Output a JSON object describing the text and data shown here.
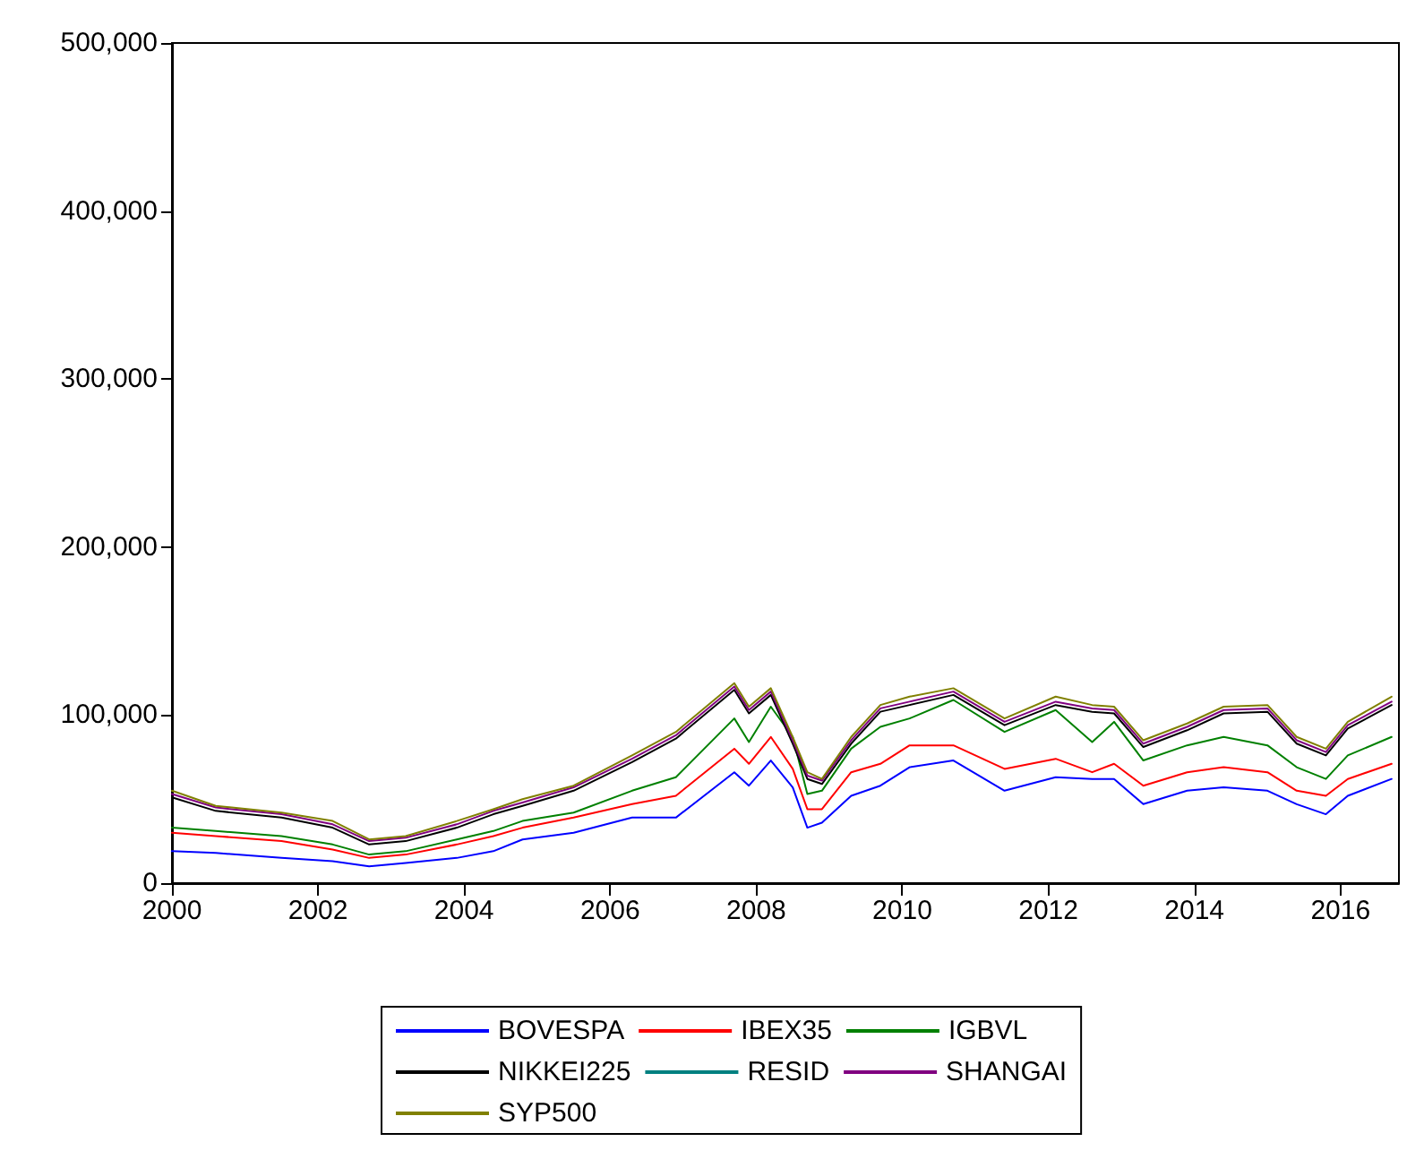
{
  "chart_data": {
    "type": "line",
    "x": [
      2000.0,
      2000.6,
      2001.5,
      2002.2,
      2002.7,
      2003.2,
      2003.9,
      2004.4,
      2004.8,
      2005.5,
      2006.3,
      2006.9,
      2007.7,
      2007.9,
      2008.2,
      2008.5,
      2008.7,
      2008.9,
      2009.3,
      2009.7,
      2010.1,
      2010.7,
      2011.4,
      2012.1,
      2012.6,
      2012.9,
      2013.3,
      2013.9,
      2014.4,
      2015.0,
      2015.4,
      2015.8,
      2016.1,
      2016.7
    ],
    "series": [
      {
        "name": "BOVESPA",
        "color": "#0000ff",
        "values": [
          19000,
          18000,
          15000,
          13000,
          10000,
          12000,
          15000,
          19000,
          26000,
          30000,
          39000,
          39000,
          66000,
          58000,
          73000,
          57000,
          33000,
          36000,
          52000,
          58000,
          69000,
          73000,
          55000,
          63000,
          62000,
          62000,
          47000,
          55000,
          57000,
          55000,
          47000,
          41000,
          52000,
          62000
        ]
      },
      {
        "name": "IBEX35",
        "color": "#ff0000",
        "values": [
          30000,
          28000,
          25000,
          20000,
          15000,
          17000,
          23000,
          28000,
          33000,
          39000,
          47000,
          52000,
          80000,
          71000,
          87000,
          68000,
          44000,
          44000,
          66000,
          71000,
          82000,
          82000,
          68000,
          74000,
          66000,
          71000,
          58000,
          66000,
          69000,
          66000,
          55000,
          52000,
          62000,
          71000
        ]
      },
      {
        "name": "IGBVL",
        "color": "#008000",
        "values": [
          33000,
          31000,
          28000,
          23000,
          17000,
          19000,
          26000,
          31000,
          37000,
          42000,
          55000,
          63000,
          98000,
          84000,
          105000,
          87000,
          53000,
          55000,
          80000,
          93000,
          98000,
          109000,
          90000,
          103000,
          84000,
          96000,
          73000,
          82000,
          87000,
          82000,
          69000,
          62000,
          76000,
          87000
        ]
      },
      {
        "name": "NIKKEI225",
        "color": "#000000",
        "values": [
          51000,
          43000,
          39000,
          33000,
          23000,
          25000,
          33000,
          41000,
          46000,
          55000,
          72000,
          86000,
          115000,
          101000,
          112000,
          83000,
          62000,
          59000,
          83000,
          102000,
          106000,
          112000,
          94000,
          106000,
          102000,
          101000,
          81000,
          91000,
          101000,
          102000,
          83000,
          76000,
          92000,
          106000
        ]
      },
      {
        "name": "RESID",
        "color": "#008080",
        "values": [
          null,
          null,
          null,
          null,
          null,
          null,
          null,
          null,
          null,
          null,
          null,
          null,
          null,
          null,
          null,
          null,
          null,
          null,
          null,
          null,
          null,
          null,
          null,
          null,
          null,
          null,
          null,
          null,
          null,
          null,
          null,
          null,
          null,
          null
        ]
      },
      {
        "name": "SHANGAI",
        "color": "#800080",
        "values": [
          53000,
          45000,
          41000,
          35000,
          25000,
          27000,
          35000,
          43000,
          48000,
          57000,
          74000,
          88000,
          117000,
          103000,
          114000,
          85000,
          64000,
          61000,
          85000,
          104000,
          108000,
          114000,
          96000,
          108000,
          104000,
          103000,
          83000,
          93000,
          103000,
          104000,
          85000,
          78000,
          94000,
          108000
        ]
      },
      {
        "name": "SYP500",
        "color": "#808000",
        "values": [
          55000,
          46000,
          42000,
          37000,
          26000,
          28000,
          37000,
          44000,
          50000,
          58000,
          76000,
          90000,
          119000,
          105000,
          116000,
          87000,
          66000,
          62000,
          87000,
          106000,
          111000,
          116000,
          98000,
          111000,
          106000,
          105000,
          85000,
          95000,
          105000,
          106000,
          87000,
          80000,
          96000,
          111000
        ]
      }
    ],
    "xlim": [
      2000,
      2016.8
    ],
    "xticks": [
      2000,
      2002,
      2004,
      2006,
      2008,
      2010,
      2012,
      2014,
      2016
    ],
    "ylim": [
      0,
      500000
    ],
    "yticks": [
      0,
      {
        "value": 100000,
        "label": "100,000"
      },
      {
        "value": 200000,
        "label": "200,000"
      },
      {
        "value": 300000,
        "label": "300,000"
      },
      {
        "value": 400000,
        "label": "400,000"
      },
      {
        "value": 500000,
        "label": "500,000"
      }
    ],
    "grid": false,
    "legend": "bottom",
    "marker": "none",
    "line_style": "solid"
  }
}
